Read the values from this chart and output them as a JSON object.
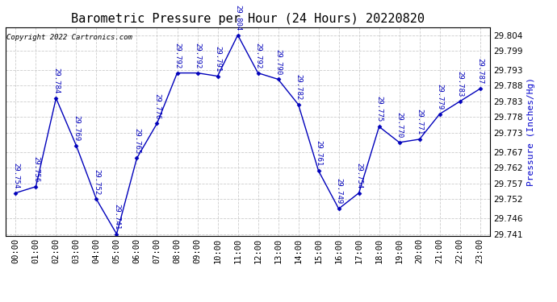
{
  "title": "Barometric Pressure per Hour (24 Hours) 20220820",
  "copyright_text": "Copyright 2022 Cartronics.com",
  "ylabel": "Pressure (Inches/Hg)",
  "hours": [
    "00:00",
    "01:00",
    "02:00",
    "03:00",
    "04:00",
    "05:00",
    "06:00",
    "07:00",
    "08:00",
    "09:00",
    "10:00",
    "11:00",
    "12:00",
    "13:00",
    "14:00",
    "15:00",
    "16:00",
    "17:00",
    "18:00",
    "19:00",
    "20:00",
    "21:00",
    "22:00",
    "23:00"
  ],
  "values": [
    29.754,
    29.756,
    29.784,
    29.769,
    29.752,
    29.741,
    29.765,
    29.776,
    29.792,
    29.792,
    29.791,
    29.804,
    29.792,
    29.79,
    29.782,
    29.761,
    29.749,
    29.754,
    29.775,
    29.77,
    29.771,
    29.779,
    29.783,
    29.787
  ],
  "line_color": "#0000bb",
  "marker_color": "#0000bb",
  "title_color": "#000000",
  "ylabel_color": "#0000cc",
  "copyright_color": "#000000",
  "bg_color": "#ffffff",
  "grid_color": "#cccccc",
  "ylim_min": 29.7405,
  "ylim_max": 29.8065,
  "yticks": [
    29.741,
    29.746,
    29.752,
    29.757,
    29.762,
    29.767,
    29.773,
    29.778,
    29.783,
    29.788,
    29.793,
    29.799,
    29.804
  ],
  "title_fontsize": 11,
  "label_fontsize": 8,
  "tick_fontsize": 7.5,
  "annotation_fontsize": 6.5,
  "fig_width": 6.9,
  "fig_height": 3.75
}
